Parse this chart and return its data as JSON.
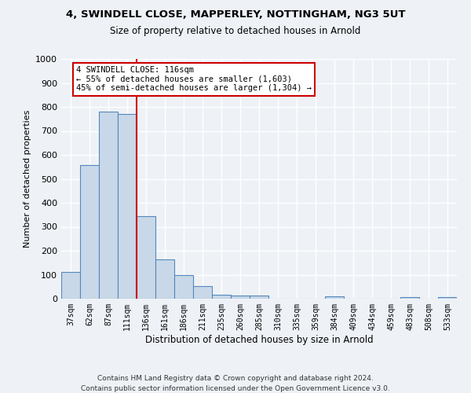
{
  "title": "4, SWINDELL CLOSE, MAPPERLEY, NOTTINGHAM, NG3 5UT",
  "subtitle": "Size of property relative to detached houses in Arnold",
  "xlabel": "Distribution of detached houses by size in Arnold",
  "ylabel": "Number of detached properties",
  "bar_color": "#c8d8e8",
  "bar_edge_color": "#5588bb",
  "categories": [
    "37sqm",
    "62sqm",
    "87sqm",
    "111sqm",
    "136sqm",
    "161sqm",
    "186sqm",
    "211sqm",
    "235sqm",
    "260sqm",
    "285sqm",
    "310sqm",
    "335sqm",
    "359sqm",
    "384sqm",
    "409sqm",
    "434sqm",
    "459sqm",
    "483sqm",
    "508sqm",
    "533sqm"
  ],
  "values": [
    113,
    558,
    780,
    770,
    343,
    165,
    97,
    53,
    18,
    13,
    13,
    0,
    0,
    0,
    10,
    0,
    0,
    0,
    8,
    0,
    8
  ],
  "ylim": [
    0,
    1000
  ],
  "yticks": [
    0,
    100,
    200,
    300,
    400,
    500,
    600,
    700,
    800,
    900,
    1000
  ],
  "vline_x": 3.5,
  "vline_color": "#cc0000",
  "annotation_text": "4 SWINDELL CLOSE: 116sqm\n← 55% of detached houses are smaller (1,603)\n45% of semi-detached houses are larger (1,304) →",
  "annotation_box_color": "#ffffff",
  "annotation_box_edge": "#cc0000",
  "footer_line1": "Contains HM Land Registry data © Crown copyright and database right 2024.",
  "footer_line2": "Contains public sector information licensed under the Open Government Licence v3.0.",
  "background_color": "#eef2f7",
  "grid_color": "#ffffff"
}
